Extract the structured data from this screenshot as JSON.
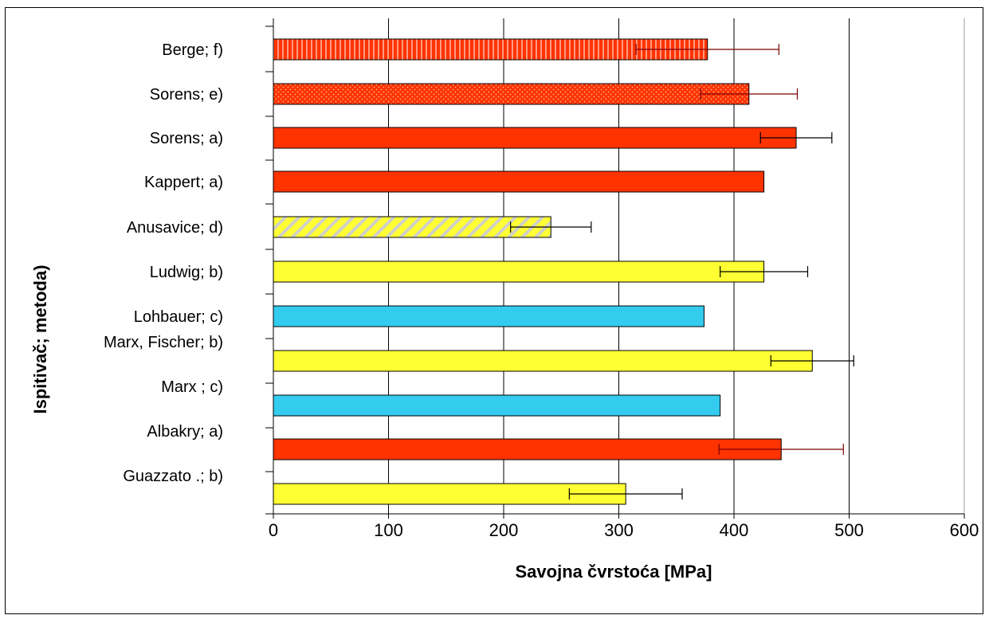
{
  "chart_data": {
    "type": "bar",
    "orientation": "horizontal",
    "title": "",
    "xlabel": "Savojna čvrstoća [MPa]",
    "ylabel": "Ispitivač; metoda)",
    "xlim": [
      0,
      600
    ],
    "xticks": [
      0,
      100,
      200,
      300,
      400,
      500,
      600
    ],
    "grid": "vertical",
    "legend": "none",
    "categories": [
      "Berge; f)",
      "Sorens; e)",
      "Sorens; a)",
      "Kappert; a)",
      "Anusavice; d)",
      "Ludwig;  b)",
      "Lohbauer;  c)",
      "Marx, Fischer; b)",
      "Marx ;   c)",
      "Albakry;  a)",
      "Guazzato .;  b)"
    ],
    "bars": [
      {
        "value": 377,
        "error": 62,
        "color": "#ff3300",
        "pattern": "vertical-stripes",
        "error_color": "#7a0000"
      },
      {
        "value": 413,
        "error": 42,
        "color": "#ff3300",
        "pattern": "dots",
        "error_color": "#7a0000"
      },
      {
        "value": 454,
        "error": 31,
        "color": "#ff3300",
        "pattern": "solid",
        "error_color": "#000000"
      },
      {
        "value": 426,
        "error": 0,
        "color": "#ff3300",
        "pattern": "solid",
        "error_color": "#000000"
      },
      {
        "value": 241,
        "error": 35,
        "color": "#ffff33",
        "pattern": "diagonal-stripes",
        "error_color": "#000000"
      },
      {
        "value": 426,
        "error": 38,
        "color": "#ffff33",
        "pattern": "solid",
        "error_color": "#000000"
      },
      {
        "value": 374,
        "error": 0,
        "color": "#33ccee",
        "pattern": "solid",
        "error_color": "#000000"
      },
      {
        "value": 468,
        "error": 36,
        "color": "#ffff33",
        "pattern": "solid",
        "error_color": "#000000"
      },
      {
        "value": 388,
        "error": 0,
        "color": "#33ccee",
        "pattern": "solid",
        "error_color": "#000000"
      },
      {
        "value": 441,
        "error": 54,
        "color": "#ff3300",
        "pattern": "solid",
        "error_color": "#7a0000"
      },
      {
        "value": 306,
        "error": 49,
        "color": "#ffff33",
        "pattern": "solid",
        "error_color": "#000000"
      }
    ]
  }
}
